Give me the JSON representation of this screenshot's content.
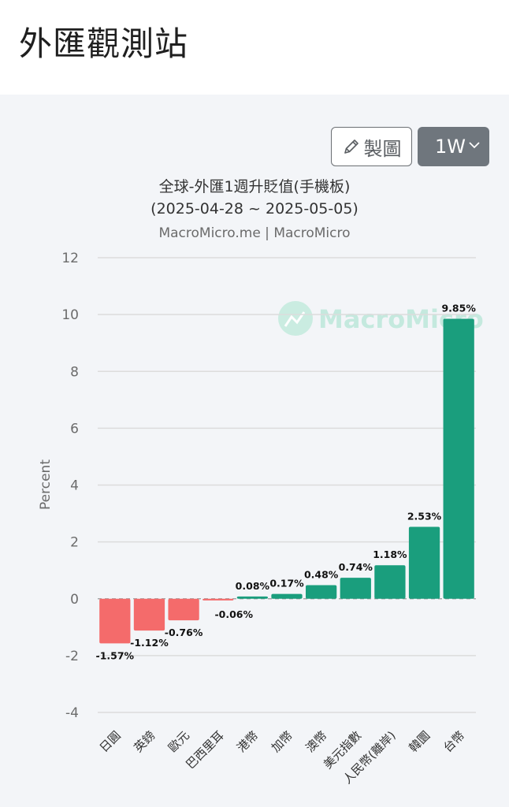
{
  "page": {
    "title": "外匯觀測站"
  },
  "toolbar": {
    "chart_button_label": "製圖",
    "period_label": "1W"
  },
  "watermark": {
    "text": "MacroMicro",
    "icon": "macromicro-logo-icon"
  },
  "chart_data": {
    "type": "bar",
    "title": "全球-外匯1週升貶值(手機板)",
    "subtitle": "(2025-04-28 ~ 2025-05-05)",
    "source": "MacroMicro.me | MacroMicro",
    "ylabel": "Percent",
    "ylim": [
      -4,
      12
    ],
    "yticks": [
      "12",
      "10",
      "8",
      "6",
      "4",
      "2",
      "0",
      "-2",
      "-4"
    ],
    "ytick_values": [
      12,
      10,
      8,
      6,
      4,
      2,
      0,
      -2,
      -4
    ],
    "grid": true,
    "colors": {
      "positive": "#1a9e7d",
      "negative": "#f46b6b"
    },
    "categories": [
      "日圓",
      "英鎊",
      "歐元",
      "巴西里耳",
      "港幣",
      "加幣",
      "澳幣",
      "美元指數",
      "人民幣(離岸)",
      "韓圜",
      "台幣"
    ],
    "values": [
      -1.57,
      -1.12,
      -0.76,
      -0.06,
      0.08,
      0.17,
      0.48,
      0.74,
      1.18,
      2.53,
      9.85
    ],
    "value_labels": [
      "-1.57%",
      "-1.12%",
      "-0.76%",
      "-0.06%",
      "0.08%",
      "0.17%",
      "0.48%",
      "0.74%",
      "1.18%",
      "2.53%",
      "9.85%"
    ]
  }
}
